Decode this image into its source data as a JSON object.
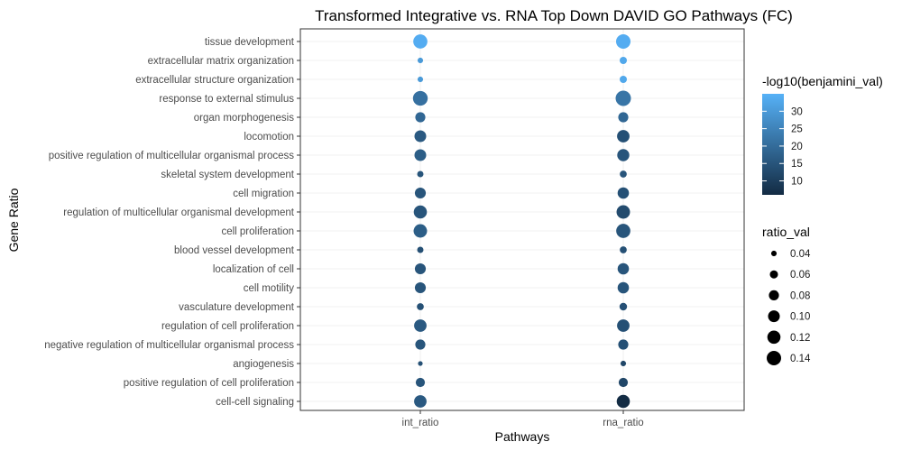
{
  "chart_data": {
    "type": "scatter",
    "title": "Transformed Integrative vs. RNA Top Down DAVID GO Pathways (FC)",
    "xlabel": "Pathways",
    "ylabel": "Gene Ratio",
    "x_categories": [
      "int_ratio",
      "rna_ratio"
    ],
    "y_categories": [
      "tissue development",
      "extracellular matrix organization",
      "extracellular structure organization",
      "response to external stimulus",
      "organ morphogenesis",
      "locomotion",
      "positive regulation of multicellular organismal process",
      "skeletal system development",
      "cell migration",
      "regulation of multicellular organismal development",
      "cell proliferation",
      "blood vessel development",
      "localization of cell",
      "cell motility",
      "vasculature development",
      "regulation of cell proliferation",
      "negative regulation of multicellular organismal process",
      "angiogenesis",
      "positive regulation of cell proliferation",
      "cell-cell signaling"
    ],
    "points": [
      {
        "x": "int_ratio",
        "y": "tissue development",
        "ratio_val": 0.135,
        "benjamini": 34
      },
      {
        "x": "rna_ratio",
        "y": "tissue development",
        "ratio_val": 0.14,
        "benjamini": 34
      },
      {
        "x": "int_ratio",
        "y": "extracellular matrix organization",
        "ratio_val": 0.04,
        "benjamini": 30
      },
      {
        "x": "rna_ratio",
        "y": "extracellular matrix organization",
        "ratio_val": 0.052,
        "benjamini": 33
      },
      {
        "x": "int_ratio",
        "y": "extracellular structure organization",
        "ratio_val": 0.04,
        "benjamini": 30
      },
      {
        "x": "rna_ratio",
        "y": "extracellular structure organization",
        "ratio_val": 0.052,
        "benjamini": 33
      },
      {
        "x": "int_ratio",
        "y": "response to external stimulus",
        "ratio_val": 0.145,
        "benjamini": 21
      },
      {
        "x": "rna_ratio",
        "y": "response to external stimulus",
        "ratio_val": 0.155,
        "benjamini": 22
      },
      {
        "x": "int_ratio",
        "y": "organ morphogenesis",
        "ratio_val": 0.08,
        "benjamini": 19
      },
      {
        "x": "rna_ratio",
        "y": "organ morphogenesis",
        "ratio_val": 0.08,
        "benjamini": 19
      },
      {
        "x": "int_ratio",
        "y": "locomotion",
        "ratio_val": 0.1,
        "benjamini": 16
      },
      {
        "x": "rna_ratio",
        "y": "locomotion",
        "ratio_val": 0.11,
        "benjamini": 14
      },
      {
        "x": "int_ratio",
        "y": "positive regulation of multicellular organismal process",
        "ratio_val": 0.1,
        "benjamini": 17
      },
      {
        "x": "rna_ratio",
        "y": "positive regulation of multicellular organismal process",
        "ratio_val": 0.105,
        "benjamini": 15
      },
      {
        "x": "int_ratio",
        "y": "skeletal system development",
        "ratio_val": 0.045,
        "benjamini": 15
      },
      {
        "x": "rna_ratio",
        "y": "skeletal system development",
        "ratio_val": 0.05,
        "benjamini": 15
      },
      {
        "x": "int_ratio",
        "y": "cell migration",
        "ratio_val": 0.09,
        "benjamini": 15
      },
      {
        "x": "rna_ratio",
        "y": "cell migration",
        "ratio_val": 0.095,
        "benjamini": 14
      },
      {
        "x": "int_ratio",
        "y": "regulation of multicellular organismal development",
        "ratio_val": 0.12,
        "benjamini": 15
      },
      {
        "x": "rna_ratio",
        "y": "regulation of multicellular organismal development",
        "ratio_val": 0.125,
        "benjamini": 13
      },
      {
        "x": "int_ratio",
        "y": "cell proliferation",
        "ratio_val": 0.125,
        "benjamini": 17
      },
      {
        "x": "rna_ratio",
        "y": "cell proliferation",
        "ratio_val": 0.135,
        "benjamini": 15
      },
      {
        "x": "int_ratio",
        "y": "blood vessel development",
        "ratio_val": 0.045,
        "benjamini": 14
      },
      {
        "x": "rna_ratio",
        "y": "blood vessel development",
        "ratio_val": 0.05,
        "benjamini": 14
      },
      {
        "x": "int_ratio",
        "y": "localization of cell",
        "ratio_val": 0.09,
        "benjamini": 15
      },
      {
        "x": "rna_ratio",
        "y": "localization of cell",
        "ratio_val": 0.095,
        "benjamini": 15
      },
      {
        "x": "int_ratio",
        "y": "cell motility",
        "ratio_val": 0.09,
        "benjamini": 15
      },
      {
        "x": "rna_ratio",
        "y": "cell motility",
        "ratio_val": 0.095,
        "benjamini": 15
      },
      {
        "x": "int_ratio",
        "y": "vasculature development",
        "ratio_val": 0.05,
        "benjamini": 14
      },
      {
        "x": "rna_ratio",
        "y": "vasculature development",
        "ratio_val": 0.055,
        "benjamini": 14
      },
      {
        "x": "int_ratio",
        "y": "regulation of cell proliferation",
        "ratio_val": 0.11,
        "benjamini": 16
      },
      {
        "x": "rna_ratio",
        "y": "regulation of cell proliferation",
        "ratio_val": 0.11,
        "benjamini": 14
      },
      {
        "x": "int_ratio",
        "y": "negative regulation of multicellular organismal process",
        "ratio_val": 0.08,
        "benjamini": 15
      },
      {
        "x": "rna_ratio",
        "y": "negative regulation of multicellular organismal process",
        "ratio_val": 0.08,
        "benjamini": 14
      },
      {
        "x": "int_ratio",
        "y": "angiogenesis",
        "ratio_val": 0.035,
        "benjamini": 14
      },
      {
        "x": "rna_ratio",
        "y": "angiogenesis",
        "ratio_val": 0.04,
        "benjamini": 12
      },
      {
        "x": "int_ratio",
        "y": "positive regulation of cell proliferation",
        "ratio_val": 0.07,
        "benjamini": 15
      },
      {
        "x": "rna_ratio",
        "y": "positive regulation of cell proliferation",
        "ratio_val": 0.07,
        "benjamini": 12
      },
      {
        "x": "int_ratio",
        "y": "cell-cell signaling",
        "ratio_val": 0.11,
        "benjamini": 16
      },
      {
        "x": "rna_ratio",
        "y": "cell-cell signaling",
        "ratio_val": 0.12,
        "benjamini": 6
      }
    ],
    "color_legend": {
      "title": "-log10(benjamini_val)",
      "ticks": [
        10,
        15,
        20,
        25,
        30
      ],
      "tick_labels": [
        "10",
        "15",
        "20",
        "25",
        "30"
      ],
      "range": [
        6,
        35
      ],
      "low_color": "#132b43",
      "high_color": "#56b1f7"
    },
    "size_legend": {
      "title": "ratio_val",
      "values": [
        0.04,
        0.06,
        0.08,
        0.1,
        0.12,
        0.14
      ],
      "labels": [
        "0.04",
        "0.06",
        "0.08",
        "0.10",
        "0.12",
        "0.14"
      ],
      "range": [
        0.03,
        0.155
      ]
    },
    "grid": true,
    "legend_position": "right"
  }
}
